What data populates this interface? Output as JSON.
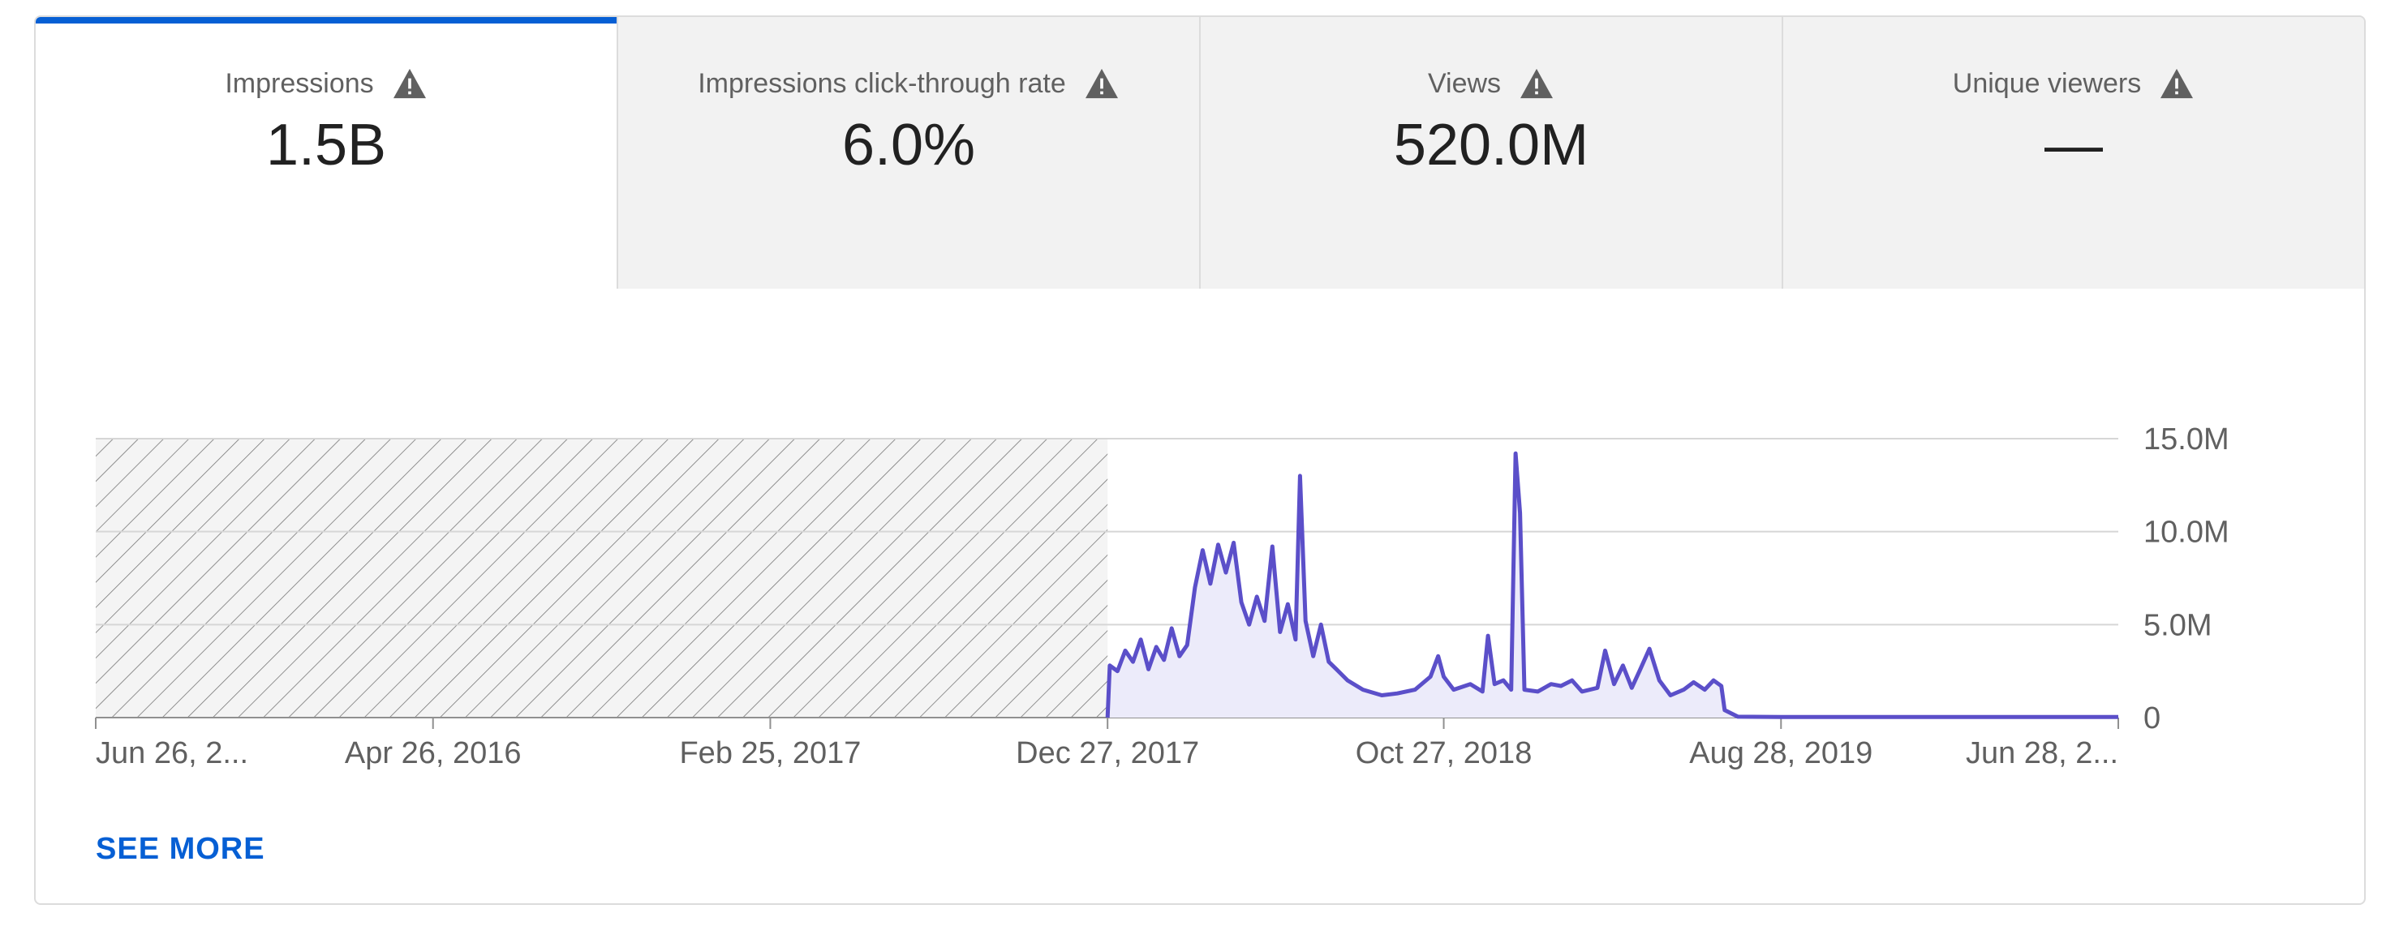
{
  "metrics": [
    {
      "label": "Impressions",
      "value": "1.5B",
      "active": true,
      "icon": "warning-icon"
    },
    {
      "label": "Impressions click-through rate",
      "value": "6.0%",
      "active": false,
      "icon": "warning-icon"
    },
    {
      "label": "Views",
      "value": "520.0M",
      "active": false,
      "icon": "warning-icon"
    },
    {
      "label": "Unique viewers",
      "value": "—",
      "active": false,
      "icon": "warning-icon"
    }
  ],
  "see_more": "SEE MORE",
  "colors": {
    "accent": "#065fd4",
    "line": "#5b4fc9",
    "fill": "#ecebfa",
    "hatch": "#777777"
  },
  "chart_data": {
    "type": "area",
    "ylim": [
      0,
      15000000
    ],
    "y_ticks": [
      {
        "value": 15000000,
        "label": "15.0M"
      },
      {
        "value": 10000000,
        "label": "10.0M"
      },
      {
        "value": 5000000,
        "label": "5.0M"
      },
      {
        "value": 0,
        "label": "0"
      }
    ],
    "x_range": [
      "2015-06-26",
      "2020-06-28"
    ],
    "x_ticks": [
      {
        "date": "2015-06-26",
        "label": "Jun 26, 2..."
      },
      {
        "date": "2016-04-26",
        "label": "Apr 26, 2016"
      },
      {
        "date": "2017-02-25",
        "label": "Feb 25, 2017"
      },
      {
        "date": "2017-12-27",
        "label": "Dec 27, 2017"
      },
      {
        "date": "2018-10-27",
        "label": "Oct 27, 2018"
      },
      {
        "date": "2019-08-28",
        "label": "Aug 28, 2019"
      },
      {
        "date": "2020-06-28",
        "label": "Jun 28, 2..."
      }
    ],
    "no_data_range": [
      "2015-06-26",
      "2017-12-27"
    ],
    "series": [
      {
        "values": [
          [
            "2017-12-27",
            0
          ],
          [
            "2017-12-29",
            2800000
          ],
          [
            "2018-01-05",
            2500000
          ],
          [
            "2018-01-12",
            3600000
          ],
          [
            "2018-01-19",
            3000000
          ],
          [
            "2018-01-26",
            4200000
          ],
          [
            "2018-02-02",
            2600000
          ],
          [
            "2018-02-09",
            3800000
          ],
          [
            "2018-02-16",
            3100000
          ],
          [
            "2018-02-23",
            4800000
          ],
          [
            "2018-03-02",
            3300000
          ],
          [
            "2018-03-09",
            3900000
          ],
          [
            "2018-03-16",
            7000000
          ],
          [
            "2018-03-23",
            9000000
          ],
          [
            "2018-03-30",
            7200000
          ],
          [
            "2018-04-06",
            9300000
          ],
          [
            "2018-04-13",
            7800000
          ],
          [
            "2018-04-20",
            9400000
          ],
          [
            "2018-04-27",
            6200000
          ],
          [
            "2018-05-04",
            5000000
          ],
          [
            "2018-05-11",
            6500000
          ],
          [
            "2018-05-18",
            5200000
          ],
          [
            "2018-05-25",
            9200000
          ],
          [
            "2018-06-01",
            4600000
          ],
          [
            "2018-06-08",
            6100000
          ],
          [
            "2018-06-15",
            4200000
          ],
          [
            "2018-06-19",
            13000000
          ],
          [
            "2018-06-24",
            5200000
          ],
          [
            "2018-07-01",
            3300000
          ],
          [
            "2018-07-08",
            5000000
          ],
          [
            "2018-07-15",
            3000000
          ],
          [
            "2018-07-22",
            2600000
          ],
          [
            "2018-08-01",
            2000000
          ],
          [
            "2018-08-15",
            1500000
          ],
          [
            "2018-09-01",
            1200000
          ],
          [
            "2018-09-15",
            1300000
          ],
          [
            "2018-10-01",
            1500000
          ],
          [
            "2018-10-15",
            2200000
          ],
          [
            "2018-10-22",
            3300000
          ],
          [
            "2018-10-27",
            2200000
          ],
          [
            "2018-11-05",
            1500000
          ],
          [
            "2018-11-20",
            1800000
          ],
          [
            "2018-12-01",
            1400000
          ],
          [
            "2018-12-06",
            4400000
          ],
          [
            "2018-12-12",
            1800000
          ],
          [
            "2018-12-20",
            2000000
          ],
          [
            "2018-12-27",
            1500000
          ],
          [
            "2018-12-31",
            14200000
          ],
          [
            "2019-01-04",
            11000000
          ],
          [
            "2019-01-08",
            1500000
          ],
          [
            "2019-01-20",
            1400000
          ],
          [
            "2019-02-01",
            1800000
          ],
          [
            "2019-02-10",
            1700000
          ],
          [
            "2019-02-20",
            2000000
          ],
          [
            "2019-03-01",
            1400000
          ],
          [
            "2019-03-15",
            1600000
          ],
          [
            "2019-03-22",
            3600000
          ],
          [
            "2019-03-30",
            1800000
          ],
          [
            "2019-04-07",
            2800000
          ],
          [
            "2019-04-15",
            1600000
          ],
          [
            "2019-04-22",
            2500000
          ],
          [
            "2019-05-01",
            3700000
          ],
          [
            "2019-05-10",
            2000000
          ],
          [
            "2019-05-20",
            1200000
          ],
          [
            "2019-06-01",
            1500000
          ],
          [
            "2019-06-10",
            1900000
          ],
          [
            "2019-06-20",
            1500000
          ],
          [
            "2019-06-28",
            2000000
          ],
          [
            "2019-07-05",
            1700000
          ],
          [
            "2019-07-08",
            400000
          ],
          [
            "2019-07-20",
            50000
          ],
          [
            "2019-08-28",
            30000
          ],
          [
            "2020-06-28",
            30000
          ]
        ]
      }
    ]
  }
}
